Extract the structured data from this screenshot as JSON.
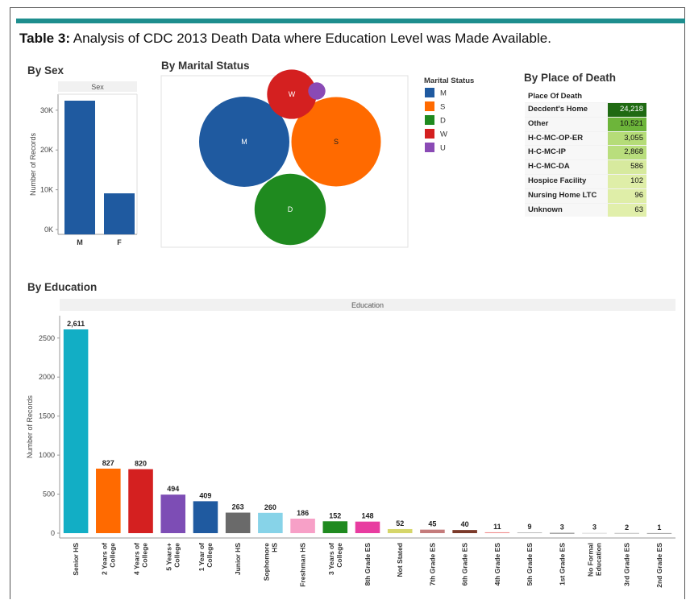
{
  "caption": {
    "label": "Table 3:",
    "text": "Analysis of CDC 2013 Death Data where Education Level was Made Available."
  },
  "sections": {
    "by_sex": "By Sex",
    "by_marital": "By Marital Status",
    "by_place": "By Place of Death",
    "by_education": "By Education"
  },
  "chart_data": [
    {
      "id": "sex",
      "type": "bar",
      "title": "Sex",
      "ylabel": "Number of Records",
      "categories": [
        "M",
        "F"
      ],
      "values": [
        32400,
        9100
      ],
      "ylim": [
        0,
        32400
      ],
      "yticks": [
        0,
        10000,
        20000,
        30000
      ],
      "yticklabels": [
        "0K",
        "10K",
        "20K",
        "30K"
      ],
      "color": "#1f5aa0"
    },
    {
      "id": "marital",
      "type": "bubble",
      "legend_title": "Marital Status",
      "categories": [
        "M",
        "S",
        "D",
        "W",
        "U"
      ],
      "values": [
        17000,
        16700,
        10600,
        5100,
        620
      ],
      "colors": [
        "#1f5aa0",
        "#ff6a00",
        "#1f8a1f",
        "#d42020",
        "#8a4ab5"
      ],
      "labeled": [
        true,
        true,
        true,
        true,
        false
      ]
    },
    {
      "id": "place",
      "type": "table",
      "header": "Place Of Death",
      "rows": [
        {
          "label": "Decdent's Home",
          "value": "24,218",
          "n": 24218,
          "bg": "#1f6a12",
          "fg": "#ffffff"
        },
        {
          "label": "Other",
          "value": "10,521",
          "n": 10521,
          "bg": "#6db53a",
          "fg": "#111111"
        },
        {
          "label": "H-C-MC-OP-ER",
          "value": "3,055",
          "n": 3055,
          "bg": "#b5dc78",
          "fg": "#111111"
        },
        {
          "label": "H-C-MC-IP",
          "value": "2,868",
          "n": 2868,
          "bg": "#b9de7d",
          "fg": "#111111"
        },
        {
          "label": "H-C-MC-DA",
          "value": "586",
          "n": 586,
          "bg": "#d7ea9e",
          "fg": "#111111"
        },
        {
          "label": "Hospice Facility",
          "value": "102",
          "n": 102,
          "bg": "#dfeea8",
          "fg": "#111111"
        },
        {
          "label": "Nursing Home LTC",
          "value": "96",
          "n": 96,
          "bg": "#dfeea8",
          "fg": "#111111"
        },
        {
          "label": "Unknown",
          "value": "63",
          "n": 63,
          "bg": "#e1efab",
          "fg": "#111111"
        }
      ]
    },
    {
      "id": "education",
      "type": "bar",
      "title": "Education",
      "ylabel": "Number of Records",
      "ylim": [
        0,
        2611
      ],
      "yticks": [
        0,
        500,
        1000,
        1500,
        2000,
        2500
      ],
      "categories": [
        [
          "Senior HS"
        ],
        [
          "2 Years of",
          "College"
        ],
        [
          "4 Years of",
          "College"
        ],
        [
          "5 Years+",
          "College"
        ],
        [
          "1 Year of",
          "College"
        ],
        [
          "Junior HS"
        ],
        [
          "Sophomore",
          "HS"
        ],
        [
          "Freshman HS"
        ],
        [
          "3 Years of",
          "College"
        ],
        [
          "8th Grade ES"
        ],
        [
          "Not Stated"
        ],
        [
          "7th Grade ES"
        ],
        [
          "6th Grade ES"
        ],
        [
          "4th Grade ES"
        ],
        [
          "5th Grade ES"
        ],
        [
          "1st Grade ES"
        ],
        [
          "No Formal",
          "Education"
        ],
        [
          "3rd Grade ES"
        ],
        [
          "2nd Grade ES"
        ]
      ],
      "values": [
        2611,
        827,
        820,
        494,
        409,
        263,
        260,
        186,
        152,
        148,
        52,
        45,
        40,
        11,
        9,
        3,
        3,
        2,
        1
      ],
      "value_labels": [
        "2,611",
        "827",
        "820",
        "494",
        "409",
        "263",
        "260",
        "186",
        "152",
        "148",
        "52",
        "45",
        "40",
        "11",
        "9",
        "3",
        "3",
        "2",
        "1"
      ],
      "colors": [
        "#12aec5",
        "#ff6a00",
        "#d42020",
        "#7d4db5",
        "#1f5aa0",
        "#6a6a6a",
        "#87d3e8",
        "#f7a0c7",
        "#1f8a1f",
        "#e83ca0",
        "#d6d66a",
        "#c47b7b",
        "#7b3a2a",
        "#f08a8a",
        "#b0b0b0",
        "#555555",
        "#cccccc",
        "#aaaaaa",
        "#888888"
      ]
    }
  ]
}
